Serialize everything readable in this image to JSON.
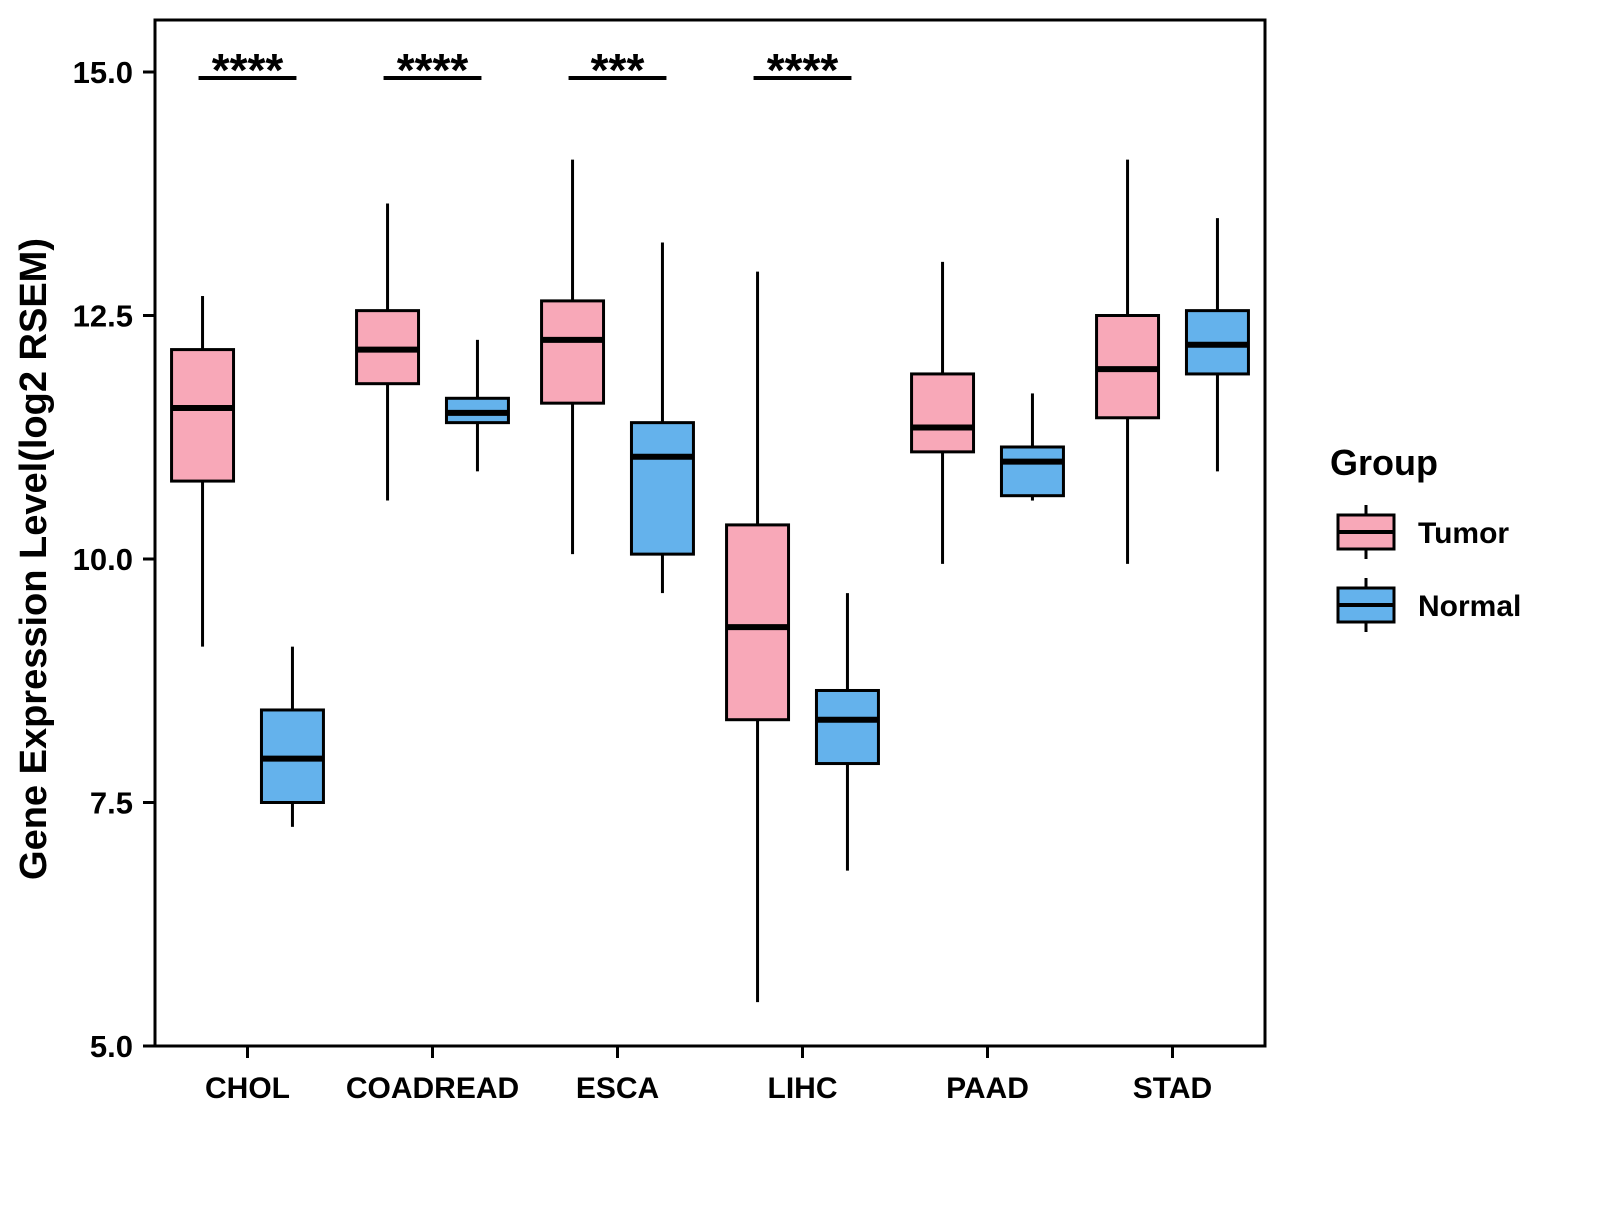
{
  "figure": {
    "ylabel": "Gene Expression Level(log2 RSEM)",
    "legend_title": "Group"
  },
  "chart_data": {
    "type": "boxplot",
    "title": "",
    "xlabel": "",
    "ylabel": "Gene Expression Level(log2 RSEM)",
    "ylim": [
      5.0,
      15.5
    ],
    "yticks": [
      5.0,
      7.5,
      10.0,
      12.5,
      15.0
    ],
    "grid": false,
    "categories": [
      "CHOL",
      "COADREAD",
      "ESCA",
      "LIHC",
      "PAAD",
      "STAD"
    ],
    "legend": {
      "title": "Group",
      "position": "right",
      "entries": [
        "Tumor",
        "Normal"
      ]
    },
    "colors": {
      "tumor": "#F8A8B8",
      "normal": "#64B2EC",
      "stroke": "#000000"
    },
    "significance": [
      {
        "category": "CHOL",
        "label": "****"
      },
      {
        "category": "COADREAD",
        "label": "****"
      },
      {
        "category": "ESCA",
        "label": "***"
      },
      {
        "category": "LIHC",
        "label": "****"
      }
    ],
    "series": [
      {
        "name": "Tumor",
        "color": "#F8A8B8",
        "boxes": [
          {
            "category": "CHOL",
            "whisker_low": 9.1,
            "q1": 10.8,
            "median": 11.55,
            "q3": 12.15,
            "whisker_high": 12.7
          },
          {
            "category": "COADREAD",
            "whisker_low": 10.6,
            "q1": 11.8,
            "median": 12.15,
            "q3": 12.55,
            "whisker_high": 13.65
          },
          {
            "category": "ESCA",
            "whisker_low": 10.05,
            "q1": 11.6,
            "median": 12.25,
            "q3": 12.65,
            "whisker_high": 14.1
          },
          {
            "category": "LIHC",
            "whisker_low": 5.45,
            "q1": 8.35,
            "median": 9.3,
            "q3": 10.35,
            "whisker_high": 12.95
          },
          {
            "category": "PAAD",
            "whisker_low": 9.95,
            "q1": 11.1,
            "median": 11.35,
            "q3": 11.9,
            "whisker_high": 13.05
          },
          {
            "category": "STAD",
            "whisker_low": 9.95,
            "q1": 11.45,
            "median": 11.95,
            "q3": 12.5,
            "whisker_high": 14.1
          }
        ]
      },
      {
        "name": "Normal",
        "color": "#64B2EC",
        "boxes": [
          {
            "category": "CHOL",
            "whisker_low": 7.25,
            "q1": 7.5,
            "median": 7.95,
            "q3": 8.45,
            "whisker_high": 9.1
          },
          {
            "category": "COADREAD",
            "whisker_low": 10.9,
            "q1": 11.4,
            "median": 11.5,
            "q3": 11.65,
            "whisker_high": 12.25
          },
          {
            "category": "ESCA",
            "whisker_low": 9.65,
            "q1": 10.05,
            "median": 11.05,
            "q3": 11.4,
            "whisker_high": 13.25
          },
          {
            "category": "LIHC",
            "whisker_low": 6.8,
            "q1": 7.9,
            "median": 8.35,
            "q3": 8.65,
            "whisker_high": 9.65
          },
          {
            "category": "PAAD",
            "whisker_low": 10.6,
            "q1": 10.65,
            "median": 11.0,
            "q3": 11.15,
            "whisker_high": 11.7
          },
          {
            "category": "STAD",
            "whisker_low": 10.9,
            "q1": 11.9,
            "median": 12.2,
            "q3": 12.55,
            "whisker_high": 13.5
          }
        ]
      }
    ]
  }
}
